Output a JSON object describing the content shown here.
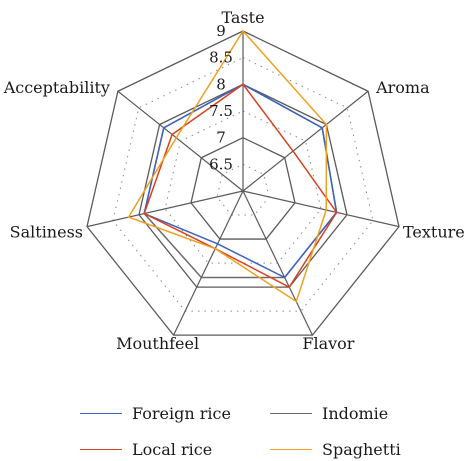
{
  "chart_data": {
    "type": "radar",
    "title": "",
    "axes": [
      "Taste",
      "Aroma",
      "Texture",
      "Flavor",
      "Mouthfeel",
      "Saltiness",
      "Acceptability"
    ],
    "ticks": [
      "6.5",
      "7",
      "7.5",
      "8",
      "8.5",
      "9"
    ],
    "range": [
      6,
      9
    ],
    "grid": true,
    "legend_position": "bottom",
    "series": [
      {
        "name": "Foreign rice",
        "color": "#3b64c0",
        "values": [
          8.0,
          7.9,
          7.8,
          7.8,
          7.1,
          7.9,
          7.9
        ]
      },
      {
        "name": "Local rice",
        "color": "#d9411e",
        "values": [
          8.0,
          7.2,
          7.8,
          8.0,
          7.2,
          7.9,
          7.7
        ]
      },
      {
        "name": "Indomie",
        "color": "#6b6b6b",
        "values": [
          8.0,
          7.9,
          7.8,
          7.8,
          7.8,
          7.9,
          7.9
        ]
      },
      {
        "name": "Spaghetti",
        "color": "#f0a020",
        "values": [
          9.0,
          8.0,
          7.6,
          8.3,
          7.2,
          8.2,
          7.6
        ]
      }
    ]
  }
}
